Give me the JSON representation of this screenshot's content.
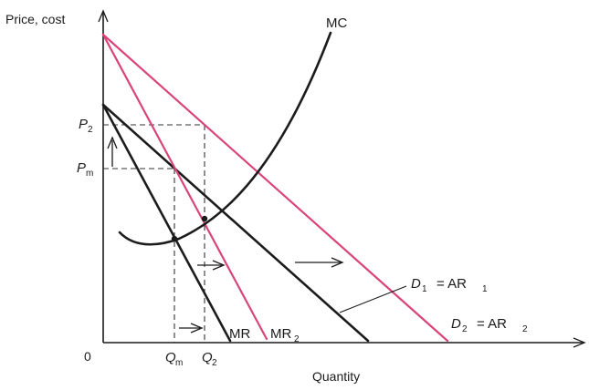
{
  "axes": {
    "y_label": "Price, cost",
    "x_label": "Quantity",
    "origin_label": "0"
  },
  "curves": {
    "mc_label": "MC",
    "mr1_label": "MR",
    "mr2_label": "MR",
    "mr2_sub": "2",
    "d1_label": "D",
    "d1_sub": "1",
    "d1_eq": "= AR",
    "d1_eq_sub": "1",
    "d2_label": "D",
    "d2_sub": "2",
    "d2_eq": "= AR",
    "d2_eq_sub": "2"
  },
  "ticks": {
    "p2_label": "P",
    "p2_sub": "2",
    "pm_label": "P",
    "pm_sub": "m",
    "qm_label": "Q",
    "qm_sub": "m",
    "q2_label": "Q",
    "q2_sub": "2"
  },
  "colors": {
    "dark_curves": "#1c1c1c",
    "shifted_curves": "#d9457a"
  }
}
